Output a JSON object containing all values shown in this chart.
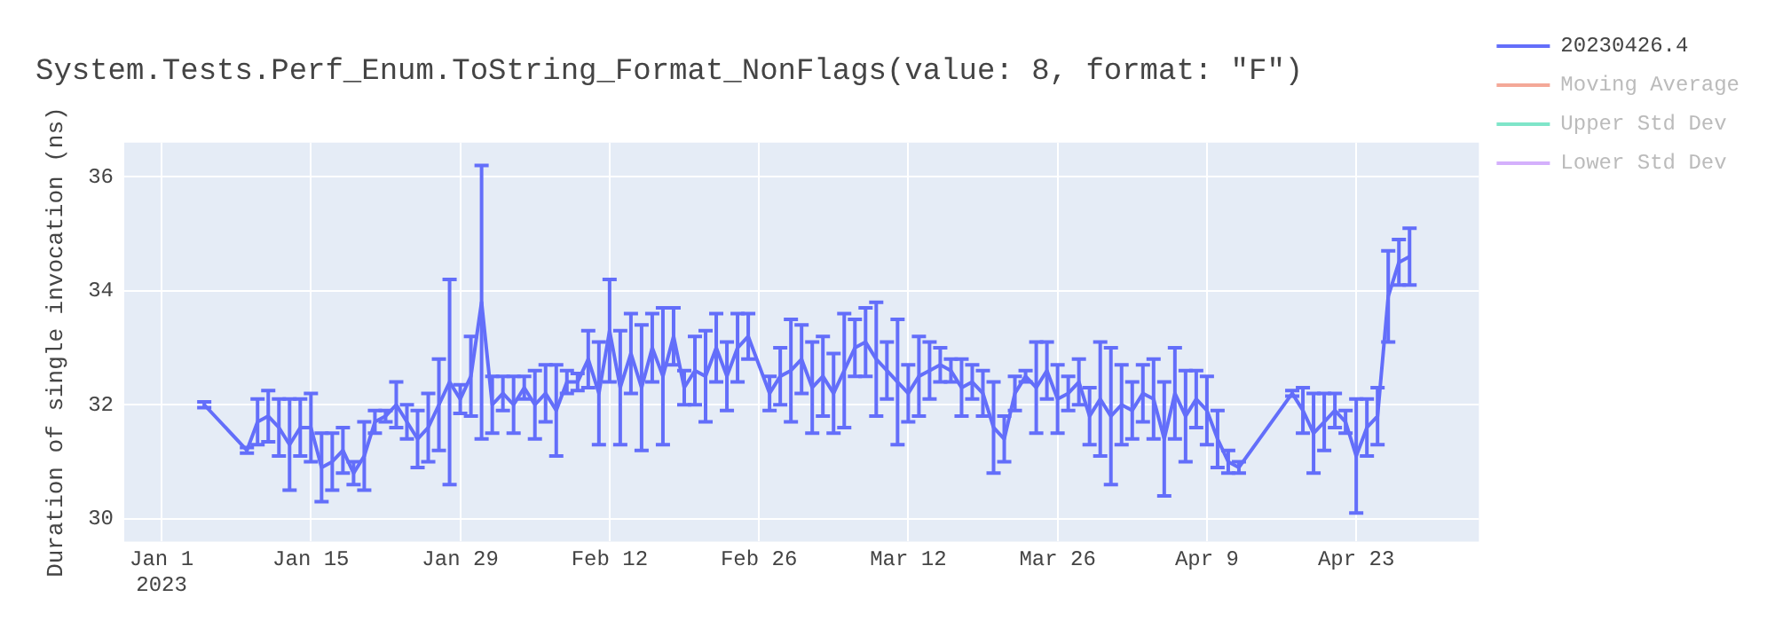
{
  "chart_data": {
    "type": "line",
    "title": "System.Tests.Perf_Enum.ToString_Format_NonFlags(value: 8, format: \"F\")",
    "ylabel": "Duration of single invocation (ns)",
    "x": [
      "2023-01-05",
      "2023-01-09",
      "2023-01-10",
      "2023-01-11",
      "2023-01-12",
      "2023-01-13",
      "2023-01-14",
      "2023-01-15",
      "2023-01-16",
      "2023-01-17",
      "2023-01-18",
      "2023-01-19",
      "2023-01-20",
      "2023-01-21",
      "2023-01-22",
      "2023-01-23",
      "2023-01-24",
      "2023-01-25",
      "2023-01-26",
      "2023-01-27",
      "2023-01-28",
      "2023-01-29",
      "2023-01-30",
      "2023-01-31",
      "2023-02-01",
      "2023-02-02",
      "2023-02-03",
      "2023-02-04",
      "2023-02-05",
      "2023-02-06",
      "2023-02-07",
      "2023-02-08",
      "2023-02-09",
      "2023-02-10",
      "2023-02-11",
      "2023-02-12",
      "2023-02-13",
      "2023-02-14",
      "2023-02-15",
      "2023-02-16",
      "2023-02-17",
      "2023-02-18",
      "2023-02-19",
      "2023-02-20",
      "2023-02-21",
      "2023-02-22",
      "2023-02-23",
      "2023-02-24",
      "2023-02-25",
      "2023-02-27",
      "2023-02-28",
      "2023-03-01",
      "2023-03-02",
      "2023-03-03",
      "2023-03-04",
      "2023-03-05",
      "2023-03-06",
      "2023-03-07",
      "2023-03-08",
      "2023-03-09",
      "2023-03-10",
      "2023-03-11",
      "2023-03-12",
      "2023-03-13",
      "2023-03-14",
      "2023-03-15",
      "2023-03-16",
      "2023-03-17",
      "2023-03-18",
      "2023-03-19",
      "2023-03-20",
      "2023-03-21",
      "2023-03-22",
      "2023-03-23",
      "2023-03-24",
      "2023-03-25",
      "2023-03-26",
      "2023-03-27",
      "2023-03-28",
      "2023-03-29",
      "2023-03-30",
      "2023-03-31",
      "2023-04-01",
      "2023-04-02",
      "2023-04-03",
      "2023-04-04",
      "2023-04-05",
      "2023-04-06",
      "2023-04-07",
      "2023-04-08",
      "2023-04-09",
      "2023-04-10",
      "2023-04-11",
      "2023-04-12",
      "2023-04-17",
      "2023-04-18",
      "2023-04-19",
      "2023-04-20",
      "2023-04-21",
      "2023-04-22",
      "2023-04-23",
      "2023-04-24",
      "2023-04-25",
      "2023-04-26",
      "2023-04-27",
      "2023-04-28"
    ],
    "series": [
      {
        "name": "20230426.4",
        "color": "#636efa",
        "values": [
          32.0,
          31.2,
          31.7,
          31.8,
          31.6,
          31.3,
          31.6,
          31.6,
          30.9,
          31.0,
          31.2,
          30.8,
          31.1,
          31.7,
          31.8,
          32.0,
          31.7,
          31.4,
          31.6,
          32.0,
          32.4,
          32.1,
          32.5,
          33.8,
          32.0,
          32.2,
          32.0,
          32.3,
          32.0,
          32.2,
          31.9,
          32.4,
          32.4,
          32.8,
          32.2,
          33.3,
          32.3,
          32.9,
          32.3,
          33.0,
          32.5,
          33.2,
          32.3,
          32.6,
          32.5,
          33.0,
          32.5,
          33.0,
          33.2,
          32.2,
          32.5,
          32.6,
          32.8,
          32.3,
          32.5,
          32.2,
          32.6,
          33.0,
          33.1,
          32.8,
          32.6,
          32.4,
          32.2,
          32.5,
          32.6,
          32.7,
          32.6,
          32.3,
          32.4,
          32.2,
          31.6,
          31.4,
          32.2,
          32.5,
          32.3,
          32.6,
          32.1,
          32.2,
          32.4,
          31.8,
          32.1,
          31.8,
          32.0,
          31.9,
          32.2,
          32.1,
          31.4,
          32.2,
          31.8,
          32.1,
          31.9,
          31.4,
          31.0,
          30.9,
          32.2,
          31.9,
          31.5,
          31.7,
          31.9,
          31.7,
          31.1,
          31.6,
          31.8,
          33.9,
          34.5,
          34.6
        ],
        "errors": [
          0.05,
          0.05,
          0.4,
          0.45,
          0.5,
          0.8,
          0.5,
          0.6,
          0.6,
          0.5,
          0.4,
          0.2,
          0.6,
          0.2,
          0.1,
          0.4,
          0.3,
          0.5,
          0.6,
          0.8,
          1.8,
          0.25,
          0.7,
          2.4,
          0.5,
          0.3,
          0.5,
          0.2,
          0.6,
          0.5,
          0.8,
          0.2,
          0.15,
          0.5,
          0.9,
          0.9,
          1.0,
          0.7,
          1.1,
          0.6,
          1.2,
          0.5,
          0.3,
          0.6,
          0.8,
          0.6,
          0.6,
          0.6,
          0.4,
          0.3,
          0.5,
          0.9,
          0.6,
          0.8,
          0.7,
          0.7,
          1.0,
          0.5,
          0.6,
          1.0,
          0.5,
          1.1,
          0.5,
          0.7,
          0.5,
          0.3,
          0.2,
          0.5,
          0.3,
          0.4,
          0.8,
          0.4,
          0.3,
          0.1,
          0.8,
          0.5,
          0.6,
          0.3,
          0.4,
          0.5,
          1.0,
          1.2,
          0.7,
          0.5,
          0.5,
          0.7,
          1.0,
          0.8,
          0.8,
          0.5,
          0.6,
          0.5,
          0.2,
          0.1,
          0.05,
          0.4,
          0.7,
          0.5,
          0.3,
          0.2,
          1.0,
          0.5,
          0.5,
          0.8,
          0.4,
          0.5
        ]
      },
      {
        "name": "Moving Average",
        "color": "#f4a898",
        "values": [
          null,
          null,
          null,
          null,
          null,
          null,
          null,
          null,
          null,
          null,
          null,
          null,
          null,
          null,
          null,
          null,
          null,
          null,
          null,
          null,
          null,
          null,
          null,
          null,
          null,
          null,
          null,
          null,
          null,
          null,
          null,
          null,
          null,
          null,
          null,
          null,
          null,
          null,
          null,
          null,
          null,
          null,
          null,
          null,
          null,
          null,
          null,
          null,
          null,
          null,
          null,
          null,
          null,
          null,
          null,
          null,
          null,
          null,
          null,
          null,
          null,
          null,
          null,
          null,
          null,
          null,
          null,
          null,
          null,
          null,
          null,
          null,
          null,
          null,
          null,
          null,
          null,
          null,
          null,
          null,
          null,
          null,
          null,
          null,
          null,
          null,
          null,
          null,
          null,
          null,
          null,
          null,
          null,
          null,
          null,
          null,
          null,
          null,
          null,
          null,
          null,
          null,
          null,
          null,
          null,
          null
        ]
      },
      {
        "name": "Upper Std Dev",
        "color": "#7fe5c9",
        "values": [
          null,
          null,
          null,
          null,
          null,
          null,
          null,
          null,
          null,
          null,
          null,
          null,
          null,
          null,
          null,
          null,
          null,
          null,
          null,
          null,
          null,
          null,
          null,
          null,
          null,
          null,
          null,
          null,
          null,
          null,
          null,
          null,
          null,
          null,
          null,
          null,
          null,
          null,
          null,
          null,
          null,
          null,
          null,
          null,
          null,
          null,
          null,
          null,
          null,
          null,
          null,
          null,
          null,
          null,
          null,
          null,
          null,
          null,
          null,
          null,
          null,
          null,
          null,
          null,
          null,
          null,
          null,
          null,
          null,
          null,
          null,
          null,
          null,
          null,
          null,
          null,
          null,
          null,
          null,
          null,
          null,
          null,
          null,
          null,
          null,
          null,
          null,
          null,
          null,
          null,
          null,
          null,
          null,
          null,
          null,
          null,
          null,
          null,
          null,
          null,
          null,
          null,
          null,
          null,
          null,
          null
        ]
      },
      {
        "name": "Lower Std Dev",
        "color": "#d4b0fc",
        "values": [
          null,
          null,
          null,
          null,
          null,
          null,
          null,
          null,
          null,
          null,
          null,
          null,
          null,
          null,
          null,
          null,
          null,
          null,
          null,
          null,
          null,
          null,
          null,
          null,
          null,
          null,
          null,
          null,
          null,
          null,
          null,
          null,
          null,
          null,
          null,
          null,
          null,
          null,
          null,
          null,
          null,
          null,
          null,
          null,
          null,
          null,
          null,
          null,
          null,
          null,
          null,
          null,
          null,
          null,
          null,
          null,
          null,
          null,
          null,
          null,
          null,
          null,
          null,
          null,
          null,
          null,
          null,
          null,
          null,
          null,
          null,
          null,
          null,
          null,
          null,
          null,
          null,
          null,
          null,
          null,
          null,
          null,
          null,
          null,
          null,
          null,
          null,
          null,
          null,
          null,
          null,
          null,
          null,
          null,
          null,
          null,
          null,
          null,
          null,
          null,
          null,
          null,
          null,
          null,
          null,
          null
        ]
      }
    ],
    "xlim": [
      "2022-12-28T12:00",
      "2023-05-04T12:00"
    ],
    "xticks": [
      {
        "value": "2023-01-01",
        "label": "Jan 1\n2023"
      },
      {
        "value": "2023-01-15",
        "label": "Jan 15"
      },
      {
        "value": "2023-01-29",
        "label": "Jan 29"
      },
      {
        "value": "2023-02-12",
        "label": "Feb 12"
      },
      {
        "value": "2023-02-26",
        "label": "Feb 26"
      },
      {
        "value": "2023-03-12",
        "label": "Mar 12"
      },
      {
        "value": "2023-03-26",
        "label": "Mar 26"
      },
      {
        "value": "2023-04-09",
        "label": "Apr 9"
      },
      {
        "value": "2023-04-23",
        "label": "Apr 23"
      }
    ],
    "ylim": [
      29.6,
      36.6
    ],
    "yticks": [
      30,
      32,
      34,
      36
    ],
    "grid": true,
    "legend": "top right",
    "marker": "none",
    "line_style": "solid"
  }
}
